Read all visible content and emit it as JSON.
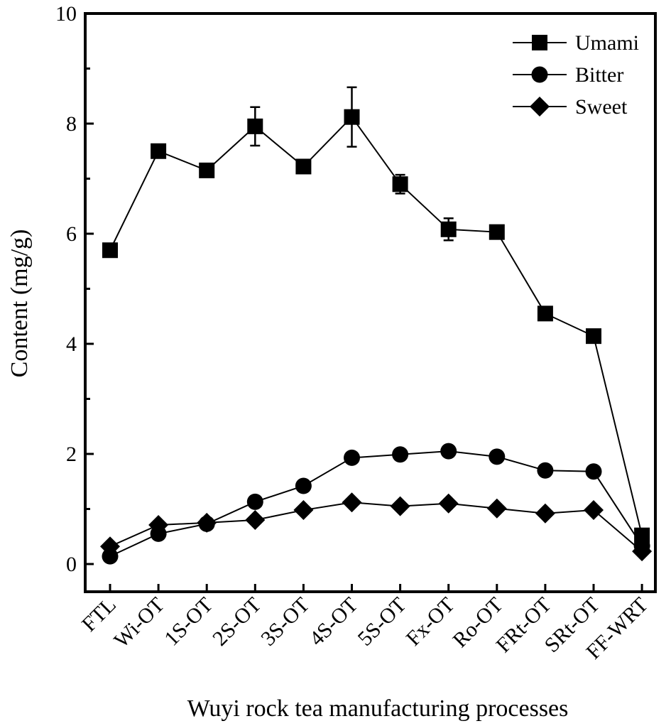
{
  "chart_data": {
    "type": "line",
    "title": "",
    "xlabel": "Wuyi rock tea manufacturing processes",
    "ylabel": "Content (mg/g)",
    "ylim": [
      0,
      10
    ],
    "yticks": [
      "0",
      "2",
      "4",
      "6",
      "8",
      "10"
    ],
    "grid": false,
    "legend_position": "top-right",
    "categories": [
      "FTL",
      "Wi-OT",
      "1S-OT",
      "2S-OT",
      "3S-OT",
      "4S-OT",
      "5S-OT",
      "Fx-OT",
      "Ro-OT",
      "FRt-OT",
      "SRt-OT",
      "FF-WRT"
    ],
    "series": [
      {
        "name": "Umami",
        "marker": "square",
        "values": [
          5.7,
          7.5,
          7.15,
          7.95,
          7.22,
          8.12,
          6.9,
          6.08,
          6.03,
          4.55,
          4.14,
          0.52
        ],
        "errors": [
          0,
          0,
          0,
          0.35,
          0.1,
          0.54,
          0.17,
          0.2,
          0,
          0,
          0.1,
          0
        ]
      },
      {
        "name": "Bitter",
        "marker": "circle",
        "values": [
          0.14,
          0.55,
          0.73,
          1.13,
          1.42,
          1.93,
          1.99,
          2.05,
          1.95,
          1.7,
          1.68,
          0.33
        ],
        "errors": [
          0,
          0,
          0,
          0,
          0,
          0,
          0,
          0,
          0,
          0,
          0,
          0
        ]
      },
      {
        "name": "Sweet",
        "marker": "diamond",
        "values": [
          0.32,
          0.71,
          0.75,
          0.8,
          0.98,
          1.12,
          1.05,
          1.1,
          1.01,
          0.92,
          0.98,
          0.23
        ],
        "errors": [
          0,
          0,
          0,
          0,
          0,
          0,
          0,
          0,
          0,
          0,
          0,
          0
        ]
      }
    ],
    "colors": {
      "line": "#000000",
      "marker": "#000000"
    }
  }
}
